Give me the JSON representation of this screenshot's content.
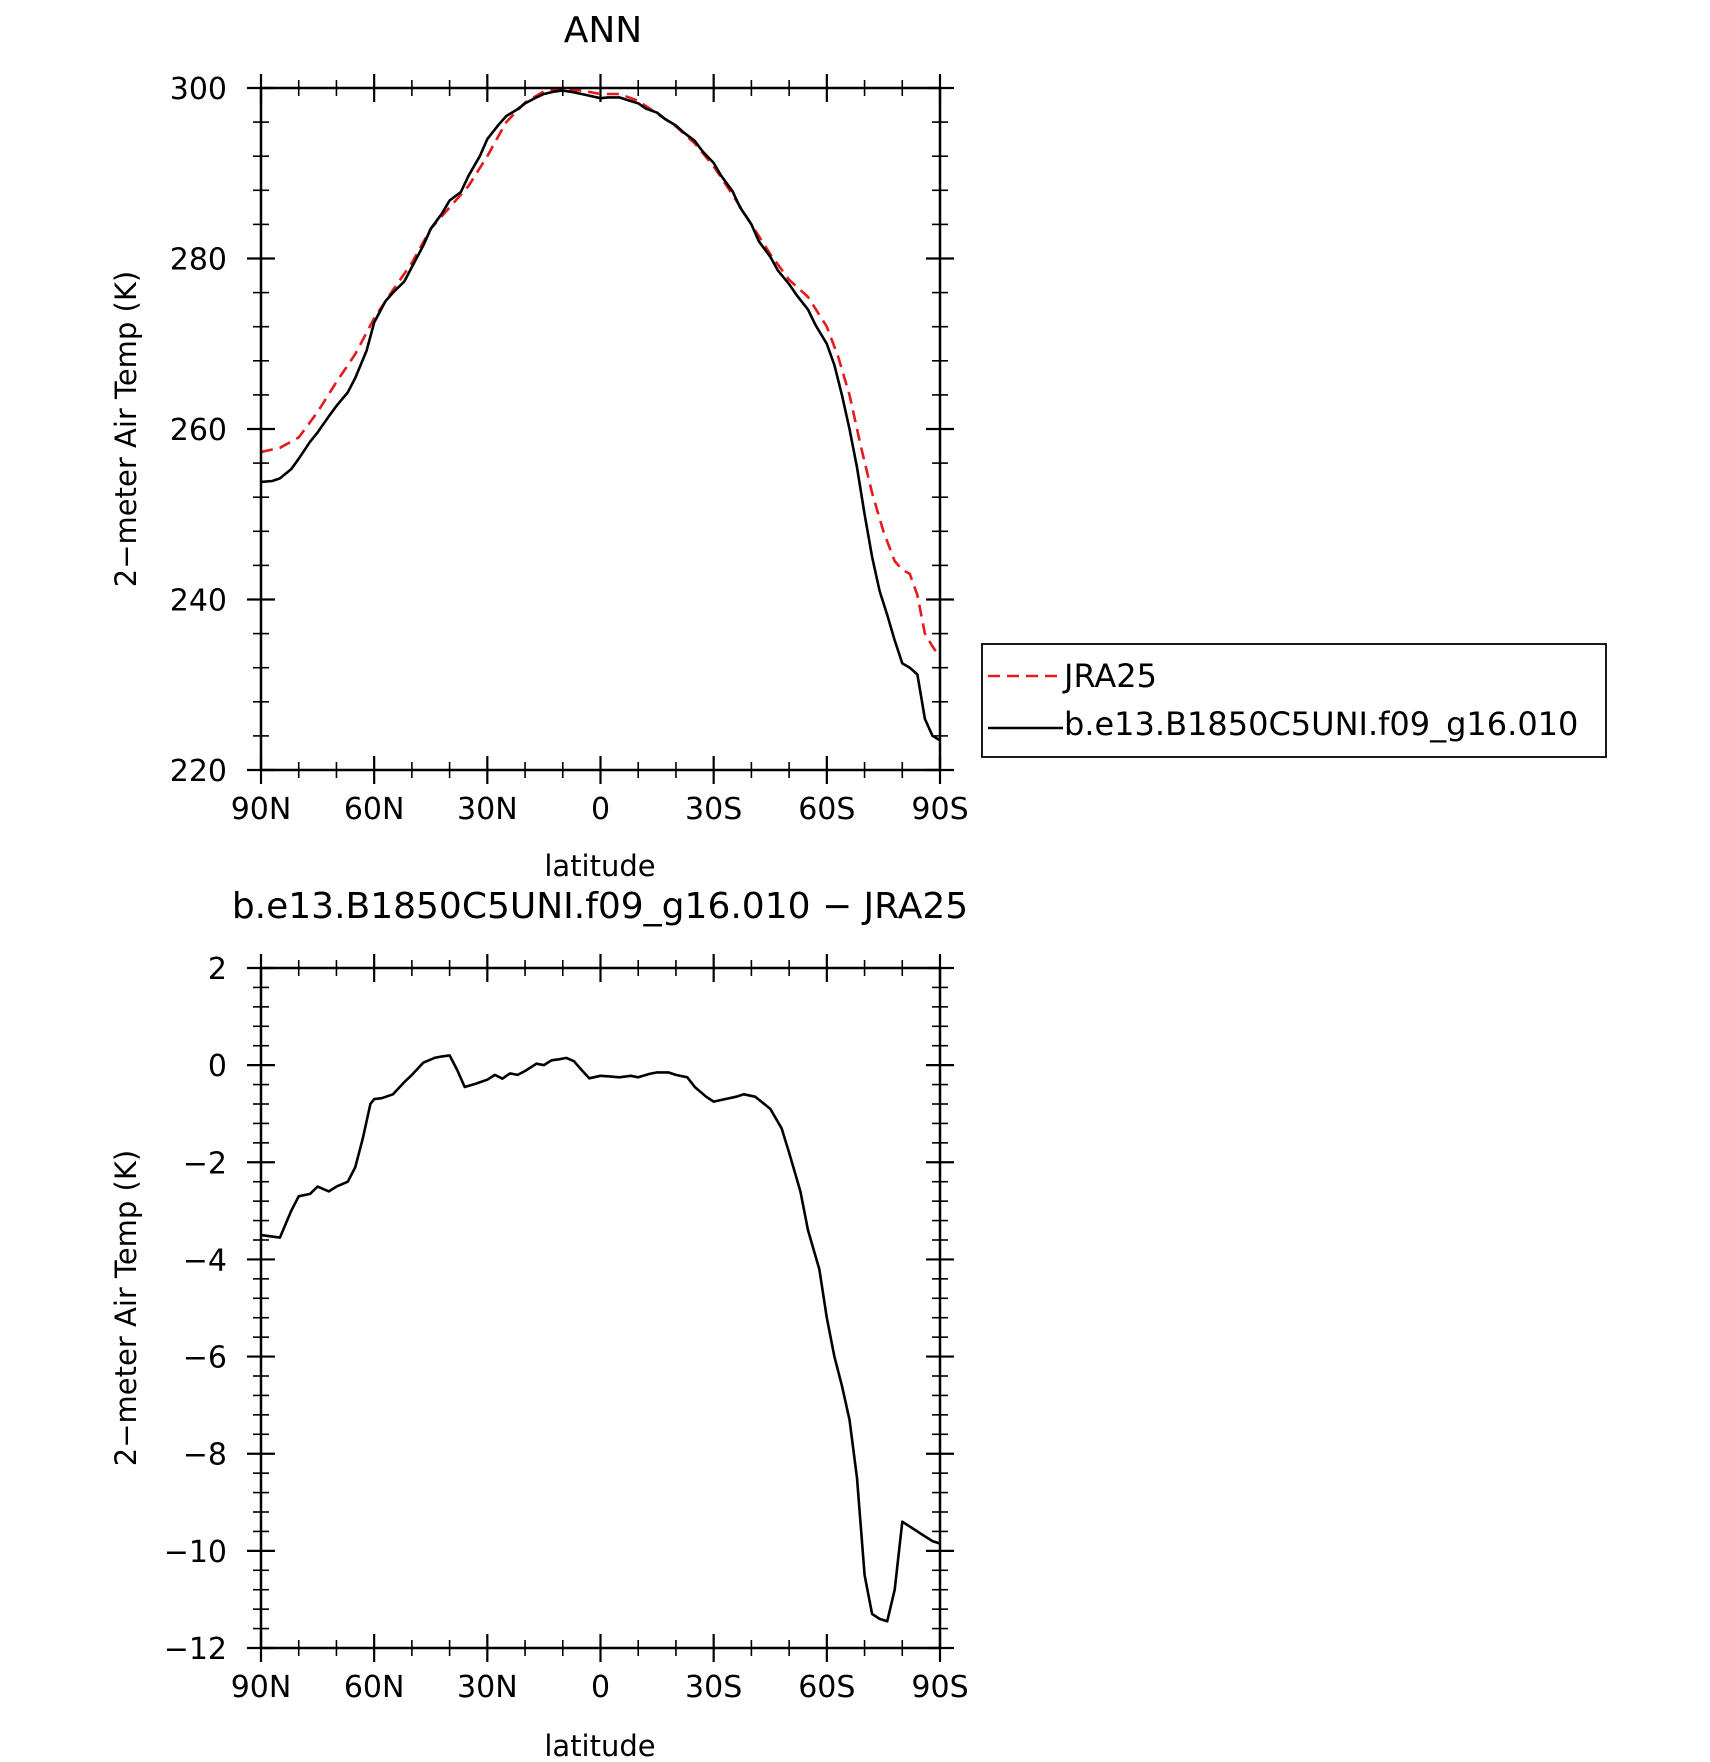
{
  "chart_data": [
    {
      "type": "line",
      "title": "ANN",
      "xlabel": "latitude",
      "ylabel": "2−meter Air Temp (K)",
      "xlim": [
        90,
        -90
      ],
      "ylim": [
        220,
        300
      ],
      "x_tick_values": [
        90,
        60,
        30,
        0,
        -30,
        -60,
        -90
      ],
      "x_tick_labels": [
        "90N",
        "60N",
        "30N",
        "0",
        "30S",
        "60S",
        "90S"
      ],
      "y_tick_values": [
        220,
        240,
        260,
        280,
        300
      ],
      "y_tick_labels": [
        "220",
        "240",
        "260",
        "280",
        "300"
      ],
      "grid": false,
      "legend_position": "right",
      "series": [
        {
          "name": "JRA25",
          "color": "#e41a1c",
          "dash": "dashed",
          "x": [
            90,
            85,
            80,
            75,
            70,
            65,
            60,
            55,
            50,
            45,
            40,
            35,
            30,
            25,
            20,
            15,
            10,
            5,
            0,
            -5,
            -10,
            -15,
            -20,
            -25,
            -30,
            -35,
            -40,
            -45,
            -50,
            -55,
            -60,
            -63,
            -66,
            -69,
            -72,
            -75,
            -78,
            -80,
            -82,
            -84,
            -86,
            -88,
            -90
          ],
          "y": [
            257.3,
            257.8,
            259.0,
            262.0,
            265.5,
            268.8,
            273.0,
            276.3,
            279.5,
            283.5,
            286.0,
            288.5,
            292.0,
            296.0,
            298.3,
            299.6,
            299.9,
            299.7,
            299.3,
            299.3,
            298.5,
            297.0,
            295.5,
            293.5,
            290.8,
            287.5,
            284.0,
            280.5,
            277.5,
            275.5,
            272.0,
            268.5,
            264.0,
            258.0,
            252.5,
            248.0,
            244.5,
            243.5,
            243.0,
            240.5,
            236.0,
            234.5,
            233.2
          ]
        },
        {
          "name": "b.e13.B1850C5UNI.f09_g16.010",
          "color": "#000000",
          "dash": "solid",
          "x": [
            90,
            87,
            85,
            82,
            80,
            77,
            75,
            72,
            70,
            67,
            65,
            62,
            60,
            57,
            55,
            52,
            50,
            47,
            45,
            42,
            40,
            37,
            35,
            32,
            30,
            27,
            25,
            22,
            20,
            17,
            15,
            12,
            10,
            7,
            5,
            2,
            0,
            -2,
            -5,
            -7,
            -10,
            -12,
            -15,
            -17,
            -20,
            -22,
            -25,
            -27,
            -30,
            -32,
            -35,
            -37,
            -40,
            -42,
            -45,
            -47,
            -50,
            -52,
            -55,
            -57,
            -60,
            -62,
            -64,
            -66,
            -68,
            -70,
            -72,
            -74,
            -76,
            -78,
            -80,
            -82,
            -84,
            -86,
            -88,
            -90
          ],
          "y": [
            253.8,
            253.9,
            254.2,
            255.3,
            256.5,
            258.5,
            259.6,
            261.5,
            262.7,
            264.3,
            266.0,
            269.2,
            272.5,
            275.0,
            276.0,
            277.3,
            279.0,
            281.5,
            283.5,
            285.3,
            286.8,
            287.8,
            289.7,
            292.0,
            294.0,
            295.7,
            296.7,
            297.5,
            298.2,
            298.9,
            299.3,
            299.6,
            299.7,
            299.5,
            299.3,
            299.0,
            298.8,
            298.9,
            298.9,
            298.6,
            298.2,
            297.6,
            297.1,
            296.4,
            295.6,
            294.8,
            293.8,
            292.6,
            291.2,
            289.7,
            287.9,
            286.0,
            284.0,
            282.0,
            280.2,
            278.6,
            277.0,
            275.7,
            274.0,
            272.2,
            270.0,
            267.5,
            264.0,
            260.0,
            255.5,
            250.0,
            245.0,
            241.0,
            238.2,
            235.2,
            232.5,
            232.0,
            231.2,
            226.0,
            224.0,
            223.5
          ]
        }
      ]
    },
    {
      "type": "line",
      "title": "b.e13.B1850C5UNI.f09_g16.010 − JRA25",
      "xlabel": "latitude",
      "ylabel": "2−meter Air Temp (K)",
      "xlim": [
        90,
        -90
      ],
      "ylim": [
        -12,
        2
      ],
      "x_tick_values": [
        90,
        60,
        30,
        0,
        -30,
        -60,
        -90
      ],
      "x_tick_labels": [
        "90N",
        "60N",
        "30N",
        "0",
        "30S",
        "60S",
        "90S"
      ],
      "y_tick_values": [
        -12,
        -10,
        -8,
        -6,
        -4,
        -2,
        0,
        2
      ],
      "y_tick_labels": [
        "−12",
        "−10",
        "−8",
        "−6",
        "−4",
        "−2",
        "0",
        "2"
      ],
      "grid": false,
      "series": [
        {
          "color": "#000000",
          "dash": "solid",
          "x": [
            90,
            85,
            82,
            80,
            77,
            75,
            72,
            70,
            67,
            65,
            63,
            61,
            60,
            58,
            55,
            52,
            50,
            47,
            44,
            42,
            40,
            38,
            36,
            33,
            30,
            28,
            26,
            24,
            22,
            20,
            17,
            15,
            13,
            11,
            9,
            7,
            5,
            3,
            0,
            -2,
            -5,
            -8,
            -10,
            -13,
            -15,
            -18,
            -20,
            -23,
            -25,
            -28,
            -30,
            -33,
            -36,
            -38,
            -41,
            -45,
            -48,
            -50,
            -53,
            -55,
            -58,
            -60,
            -62,
            -64,
            -66,
            -68,
            -70,
            -72,
            -74,
            -76,
            -78,
            -80,
            -81,
            -82,
            -83,
            -84,
            -85,
            -86,
            -88,
            -90
          ],
          "y": [
            -3.5,
            -3.55,
            -3.0,
            -2.7,
            -2.65,
            -2.5,
            -2.6,
            -2.5,
            -2.4,
            -2.1,
            -1.5,
            -0.8,
            -0.7,
            -0.68,
            -0.6,
            -0.35,
            -0.2,
            0.05,
            0.15,
            0.18,
            0.2,
            -0.1,
            -0.45,
            -0.38,
            -0.3,
            -0.2,
            -0.28,
            -0.17,
            -0.2,
            -0.12,
            0.03,
            0.0,
            0.1,
            0.12,
            0.15,
            0.08,
            -0.1,
            -0.27,
            -0.22,
            -0.23,
            -0.25,
            -0.22,
            -0.25,
            -0.18,
            -0.15,
            -0.15,
            -0.2,
            -0.25,
            -0.45,
            -0.65,
            -0.75,
            -0.7,
            -0.65,
            -0.6,
            -0.65,
            -0.9,
            -1.3,
            -1.8,
            -2.6,
            -3.4,
            -4.2,
            -5.2,
            -6.0,
            -6.6,
            -7.3,
            -8.5,
            -10.5,
            -11.3,
            -11.4,
            -11.45,
            -10.8,
            -9.4,
            -9.45,
            -9.5,
            -9.55,
            -9.6,
            -9.65,
            -9.7,
            -9.8,
            -9.85
          ]
        }
      ]
    }
  ],
  "legend": {
    "items": [
      {
        "label": "JRA25",
        "color": "#e41a1c",
        "dash": "dashed"
      },
      {
        "label": "b.e13.B1850C5UNI.f09_g16.010",
        "color": "#000000",
        "dash": "solid"
      }
    ]
  }
}
